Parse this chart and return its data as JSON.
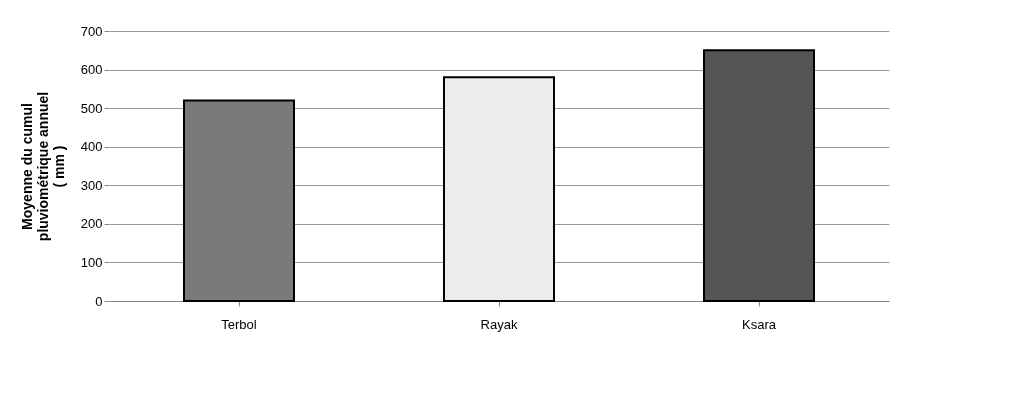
{
  "chart_data": {
    "type": "bar",
    "ylabel": "Moyenne du cumul\npluviométrique annuel\n( mm )",
    "categories": [
      "Terbol",
      "Rayak",
      "Ksara"
    ],
    "values": [
      520,
      580,
      650
    ],
    "colors": [
      "#7a7a7a",
      "#ececec",
      "#555555"
    ],
    "ylim": [
      0,
      700
    ],
    "yticks": [
      0,
      100,
      200,
      300,
      400,
      500,
      600,
      700
    ],
    "grid": "y"
  }
}
